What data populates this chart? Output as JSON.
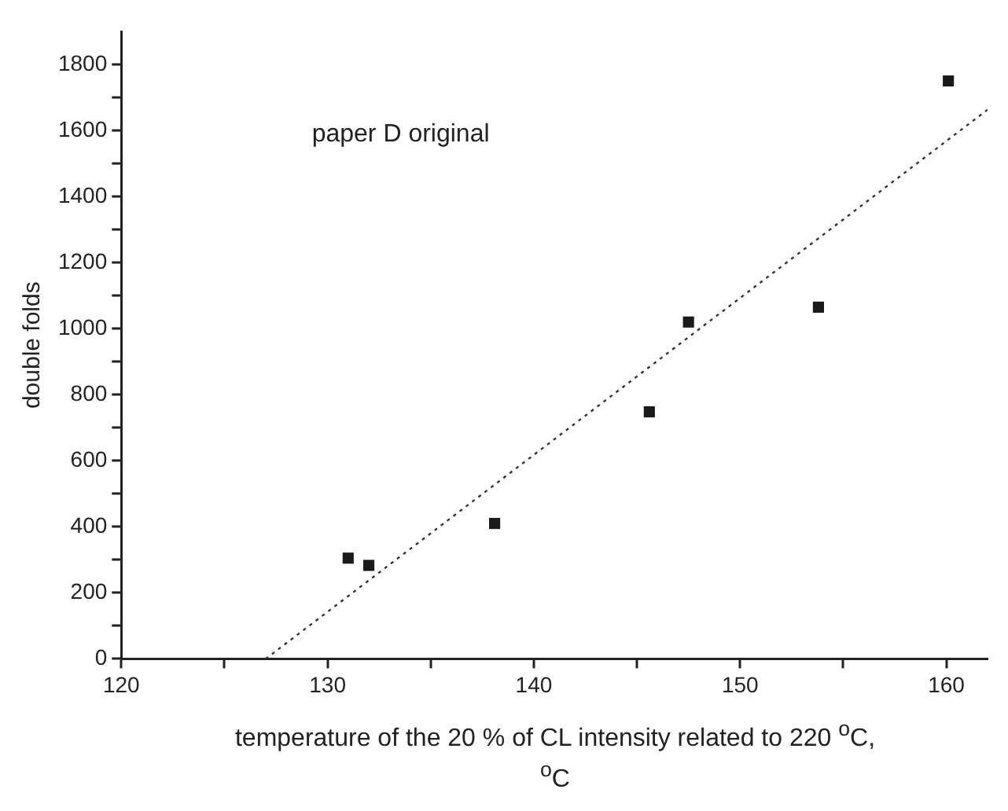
{
  "chart_data": {
    "type": "scatter",
    "xlabel": "temperature of the 20 % of CL intensity related to 220 $^{o}$C, $^{o}$C",
    "ylabel": "double folds",
    "annotations": [
      "paper D original"
    ],
    "xlim": [
      120,
      162
    ],
    "ylim": [
      0,
      1900
    ],
    "xticks": [
      120,
      {
        "value": 125,
        "label": null
      },
      130,
      {
        "value": 135,
        "label": null
      },
      140,
      {
        "value": 145,
        "label": null
      },
      150,
      {
        "value": 155,
        "label": null
      },
      160
    ],
    "yticks": [
      0,
      {
        "value": 100,
        "label": null
      },
      200,
      {
        "value": 300,
        "label": null
      },
      400,
      {
        "value": 500,
        "label": null
      },
      600,
      {
        "value": 700,
        "label": null
      },
      800,
      {
        "value": 900,
        "label": null
      },
      1000,
      {
        "value": 1100,
        "label": null
      },
      1200,
      {
        "value": 1300,
        "label": null
      },
      1400,
      {
        "value": 1500,
        "label": null
      },
      1600,
      {
        "value": 1700,
        "label": null
      },
      1800
    ],
    "grid": false,
    "legend": false,
    "series": [
      {
        "type": "scatter",
        "color": "#1a1a1a",
        "marker": "square",
        "x": [
          131,
          132,
          138.1,
          145.6,
          147.5,
          153.8,
          160.1
        ],
        "values": [
          305,
          283,
          410,
          748,
          1020,
          1065,
          1750
        ]
      },
      {
        "type": "line",
        "color": "#333333",
        "marker": "none",
        "line_style": "dotted",
        "x": [
          127,
          162
        ],
        "values": [
          0,
          1663
        ]
      }
    ]
  }
}
